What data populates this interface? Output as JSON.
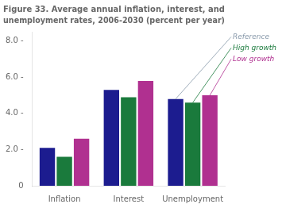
{
  "chart_data": {
    "type": "bar",
    "title": [
      "Figure 33. Average annual inflation, interest, and",
      "unemployment rates, 2006-2030 (percent per year)"
    ],
    "categories": [
      "Inflation",
      "Interest",
      "Unemployment"
    ],
    "series": [
      {
        "name": "Reference",
        "color": "#1c1c8f",
        "values": [
          2.1,
          5.3,
          4.8
        ]
      },
      {
        "name": "High growth",
        "color": "#1a7a3c",
        "values": [
          1.6,
          4.9,
          4.6
        ]
      },
      {
        "name": "Low growth",
        "color": "#b03090",
        "values": [
          2.6,
          5.8,
          5.0
        ]
      }
    ],
    "ylim": [
      0,
      8.5
    ],
    "yticks": [
      0,
      {
        "value": 2.0,
        "label": "2.0 -"
      },
      {
        "value": 4.0,
        "label": "4.0 -"
      },
      {
        "value": 6.0,
        "label": "6.0 -"
      },
      {
        "value": 8.0,
        "label": "8.0 -"
      }
    ],
    "grid": false,
    "annotations": [
      {
        "text": "Reference",
        "series": "Reference",
        "category": "Unemployment",
        "color": "#8899aa"
      },
      {
        "text": "High growth",
        "series": "High growth",
        "category": "Unemployment",
        "color": "#1a7a3c"
      },
      {
        "text": "Low growth",
        "series": "Low growth",
        "category": "Unemployment",
        "color": "#b03090"
      }
    ]
  }
}
